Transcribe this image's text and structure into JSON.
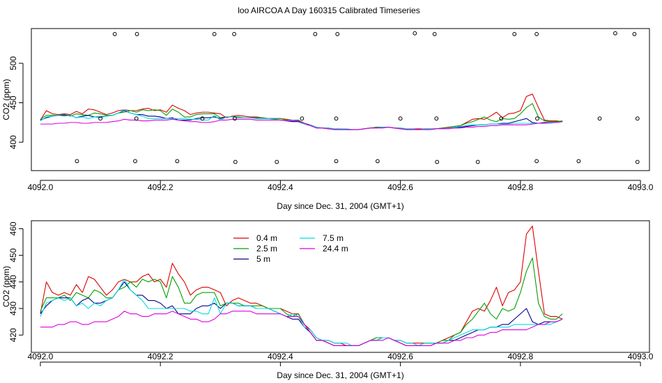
{
  "figure_title": "loo AIRCOA A  Day 160315  Calibrated Timeseries",
  "colors": {
    "0.4 m": "#dd0000",
    "2.5 m": "#00a000",
    "5 m": "#00008b",
    "7.5 m": "#00dddd",
    "24.4 m": "#dd00dd"
  },
  "chart_data": [
    {
      "type": "line",
      "title": "loo AIRCOA A  Day 160315  Calibrated Timeseries",
      "xlabel": "Day since Dec. 31, 2004 (GMT+1)",
      "ylabel": "CO2 (ppm)",
      "xlim": [
        4091.985,
        4093.015
      ],
      "ylim": [
        364,
        544
      ],
      "x_ticks": [
        4092.0,
        4092.2,
        4092.4,
        4092.6,
        4092.8,
        4093.0
      ],
      "x_tick_labels": [
        "4092.0",
        "4092.2",
        "4092.4",
        "4092.6",
        "4092.8",
        "4093.0"
      ],
      "y_ticks": [
        400,
        450,
        500
      ],
      "y_tick_labels": [
        "400",
        "450",
        "500"
      ],
      "grid": false,
      "legend": "none",
      "x_start": 4092.0,
      "x_step": 0.01,
      "series": [
        {
          "name": "0.4 m",
          "values": [
            428,
            440,
            436,
            435,
            436,
            435,
            439,
            436,
            442,
            441,
            438,
            435,
            437,
            440,
            441,
            440,
            440,
            442,
            443,
            440,
            441,
            438,
            447,
            443,
            440,
            435,
            437,
            438,
            438,
            437,
            436,
            431,
            433,
            434,
            433,
            432,
            432,
            431,
            430,
            430,
            430,
            429,
            428,
            428,
            424,
            422,
            419,
            418,
            418,
            417,
            417,
            416,
            416,
            416,
            417,
            418,
            419,
            419,
            419,
            418,
            418,
            417,
            417,
            417,
            417,
            417,
            417,
            418,
            419,
            420,
            421,
            425,
            429,
            430,
            429,
            433,
            438,
            431,
            436,
            437,
            440,
            458,
            461,
            444,
            428,
            427,
            427,
            426
          ]
        },
        {
          "name": "2.5 m",
          "values": [
            429,
            434,
            434,
            434,
            435,
            433,
            436,
            435,
            434,
            437,
            436,
            434,
            434,
            437,
            438,
            440,
            438,
            441,
            440,
            441,
            440,
            434,
            442,
            438,
            432,
            432,
            435,
            436,
            436,
            436,
            431,
            432,
            432,
            432,
            431,
            431,
            431,
            431,
            430,
            430,
            430,
            428,
            427,
            428,
            424,
            421,
            418,
            418,
            417,
            416,
            416,
            416,
            416,
            416,
            417,
            418,
            419,
            419,
            419,
            418,
            417,
            416,
            416,
            416,
            417,
            417,
            417,
            418,
            418,
            420,
            421,
            424,
            426,
            429,
            432,
            428,
            426,
            430,
            429,
            430,
            436,
            444,
            449,
            432,
            427,
            426,
            426,
            427
          ]
        },
        {
          "name": "5 m",
          "values": [
            428,
            431,
            433,
            434,
            434,
            434,
            431,
            433,
            434,
            432,
            432,
            433,
            434,
            437,
            440,
            437,
            435,
            435,
            433,
            433,
            432,
            430,
            431,
            428,
            428,
            428,
            430,
            431,
            431,
            432,
            430,
            432,
            432,
            431,
            431,
            431,
            430,
            430,
            430,
            429,
            428,
            427,
            426,
            426,
            423,
            421,
            418,
            418,
            417,
            416,
            416,
            416,
            416,
            416,
            417,
            418,
            418,
            419,
            419,
            418,
            417,
            416,
            416,
            416,
            416,
            416,
            417,
            417,
            418,
            418,
            419,
            420,
            421,
            422,
            422,
            423,
            423,
            424,
            424,
            426,
            428,
            430,
            425,
            424,
            425,
            425,
            425,
            426
          ]
        },
        {
          "name": "7.5 m",
          "values": [
            427,
            432,
            433,
            434,
            433,
            434,
            431,
            432,
            430,
            432,
            431,
            433,
            434,
            437,
            441,
            437,
            435,
            433,
            430,
            430,
            430,
            430,
            430,
            430,
            430,
            429,
            429,
            428,
            428,
            434,
            428,
            432,
            432,
            431,
            431,
            431,
            430,
            430,
            430,
            429,
            428,
            427,
            428,
            427,
            423,
            422,
            419,
            418,
            418,
            417,
            417,
            417,
            416,
            416,
            417,
            418,
            418,
            419,
            419,
            418,
            418,
            417,
            417,
            416,
            417,
            417,
            417,
            417,
            418,
            419,
            420,
            421,
            422,
            422,
            422,
            423,
            423,
            423,
            423,
            424,
            424,
            424,
            424,
            424,
            424,
            424,
            425,
            426
          ]
        },
        {
          "name": "24.4 m",
          "values": [
            423,
            423,
            423,
            424,
            424,
            425,
            425,
            424,
            424,
            425,
            425,
            425,
            426,
            427,
            429,
            428,
            428,
            427,
            427,
            428,
            428,
            428,
            429,
            428,
            427,
            426,
            426,
            425,
            425,
            426,
            428,
            428,
            429,
            429,
            429,
            429,
            428,
            428,
            428,
            428,
            428,
            427,
            427,
            427,
            424,
            421,
            418,
            418,
            417,
            416,
            416,
            416,
            416,
            416,
            417,
            418,
            418,
            418,
            419,
            418,
            417,
            416,
            416,
            416,
            416,
            416,
            417,
            417,
            417,
            418,
            418,
            419,
            419,
            420,
            420,
            421,
            421,
            422,
            422,
            422,
            422,
            422,
            423,
            424,
            424,
            425,
            425,
            426
          ]
        }
      ],
      "markers": {
        "x": [
          4092.124,
          4092.161,
          4092.29,
          4092.323,
          4092.458,
          4092.495,
          4092.624,
          4092.657,
          4092.79,
          4092.827,
          4092.958,
          4092.99,
          4092.1,
          4092.16,
          4092.27,
          4092.324,
          4092.436,
          4092.493,
          4092.6,
          4092.66,
          4092.768,
          4092.828,
          4092.932,
          4092.995,
          4092.061,
          4092.158,
          4092.228,
          4092.325,
          4092.394,
          4092.493,
          4092.562,
          4092.661,
          4092.729,
          4092.827,
          4092.897,
          4092.995
        ],
        "y": [
          537,
          537,
          537,
          537,
          537,
          537,
          538,
          537,
          537,
          537,
          538,
          537,
          430,
          430,
          430,
          430,
          430,
          430,
          430,
          430,
          430,
          430,
          430,
          430,
          376,
          376,
          376,
          375,
          375,
          376,
          376,
          375,
          375,
          376,
          376,
          375
        ]
      }
    },
    {
      "type": "line",
      "xlabel": "Day since Dec. 31, 2004 (GMT+1)",
      "ylabel": "CO2 (ppm)",
      "xlim": [
        4091.985,
        4093.015
      ],
      "ylim": [
        413.5,
        463
      ],
      "x_ticks": [
        4092.0,
        4092.2,
        4092.4,
        4092.6,
        4092.8,
        4093.0
      ],
      "x_tick_labels": [
        "4092.0",
        "4092.2",
        "4092.4",
        "4092.6",
        "4092.8",
        "4093.0"
      ],
      "y_ticks": [
        420,
        430,
        440,
        450,
        460
      ],
      "y_tick_labels": [
        "420",
        "430",
        "440",
        "450",
        "460"
      ],
      "grid": false,
      "legend": "top-left",
      "legend_entries": [
        "0.4 m",
        "2.5 m",
        "5 m",
        "7.5 m",
        "24.4 m"
      ],
      "x_start": 4092.0,
      "x_step": 0.01,
      "series": [
        {
          "name": "0.4 m",
          "values": [
            428,
            440,
            436,
            435,
            436,
            435,
            439,
            436,
            442,
            441,
            438,
            435,
            437,
            440,
            441,
            440,
            440,
            442,
            443,
            440,
            441,
            438,
            447,
            443,
            440,
            435,
            437,
            438,
            438,
            437,
            436,
            431,
            433,
            434,
            433,
            432,
            432,
            431,
            430,
            430,
            430,
            429,
            428,
            428,
            424,
            422,
            419,
            418,
            418,
            417,
            417,
            416,
            416,
            416,
            417,
            418,
            419,
            419,
            419,
            418,
            418,
            417,
            417,
            417,
            417,
            417,
            417,
            418,
            419,
            420,
            421,
            425,
            429,
            430,
            429,
            433,
            438,
            431,
            436,
            437,
            440,
            458,
            461,
            444,
            428,
            427,
            427,
            426
          ]
        },
        {
          "name": "2.5 m",
          "values": [
            429,
            434,
            434,
            434,
            435,
            433,
            436,
            435,
            434,
            437,
            436,
            434,
            434,
            437,
            438,
            440,
            438,
            441,
            440,
            441,
            440,
            434,
            442,
            438,
            432,
            432,
            435,
            436,
            436,
            436,
            431,
            432,
            432,
            432,
            431,
            431,
            431,
            431,
            430,
            430,
            430,
            428,
            427,
            428,
            424,
            421,
            418,
            418,
            417,
            416,
            416,
            416,
            416,
            416,
            417,
            418,
            419,
            419,
            419,
            418,
            417,
            416,
            416,
            416,
            417,
            417,
            417,
            418,
            418,
            420,
            421,
            424,
            426,
            429,
            432,
            428,
            426,
            430,
            429,
            430,
            436,
            444,
            449,
            432,
            427,
            426,
            426,
            428
          ]
        },
        {
          "name": "5 m",
          "values": [
            428,
            431,
            433,
            434,
            434,
            434,
            431,
            433,
            434,
            432,
            432,
            433,
            434,
            437,
            440,
            437,
            435,
            435,
            433,
            433,
            432,
            430,
            431,
            428,
            428,
            428,
            430,
            431,
            431,
            432,
            430,
            432,
            432,
            431,
            431,
            431,
            430,
            430,
            430,
            429,
            428,
            427,
            426,
            426,
            423,
            421,
            418,
            418,
            417,
            416,
            416,
            416,
            416,
            416,
            417,
            418,
            418,
            419,
            419,
            418,
            417,
            416,
            416,
            416,
            416,
            416,
            417,
            417,
            418,
            418,
            419,
            420,
            421,
            422,
            422,
            423,
            423,
            424,
            424,
            426,
            428,
            430,
            425,
            424,
            425,
            425,
            425,
            426
          ]
        },
        {
          "name": "7.5 m",
          "values": [
            427,
            432,
            433,
            434,
            433,
            434,
            431,
            432,
            430,
            432,
            431,
            433,
            434,
            437,
            441,
            437,
            435,
            433,
            430,
            430,
            430,
            430,
            430,
            430,
            430,
            429,
            429,
            428,
            428,
            434,
            428,
            432,
            432,
            431,
            431,
            431,
            430,
            430,
            430,
            429,
            428,
            427,
            428,
            427,
            423,
            422,
            419,
            418,
            418,
            417,
            417,
            417,
            416,
            416,
            417,
            418,
            418,
            419,
            419,
            418,
            418,
            417,
            417,
            416,
            417,
            417,
            417,
            417,
            418,
            419,
            420,
            421,
            422,
            422,
            422,
            423,
            423,
            423,
            423,
            424,
            424,
            424,
            424,
            424,
            424,
            424,
            425,
            426
          ]
        },
        {
          "name": "24.4 m",
          "values": [
            423,
            423,
            423,
            424,
            424,
            425,
            425,
            424,
            424,
            425,
            425,
            425,
            426,
            427,
            429,
            428,
            428,
            427,
            427,
            428,
            428,
            428,
            429,
            428,
            427,
            426,
            426,
            425,
            425,
            426,
            428,
            428,
            429,
            429,
            429,
            429,
            428,
            428,
            428,
            428,
            428,
            427,
            427,
            427,
            424,
            421,
            418,
            418,
            417,
            416,
            416,
            416,
            416,
            416,
            417,
            418,
            418,
            418,
            419,
            418,
            417,
            416,
            416,
            416,
            416,
            416,
            417,
            417,
            417,
            418,
            418,
            419,
            419,
            420,
            420,
            421,
            421,
            422,
            422,
            422,
            422,
            422,
            423,
            424,
            424,
            425,
            425,
            426
          ]
        }
      ]
    }
  ]
}
